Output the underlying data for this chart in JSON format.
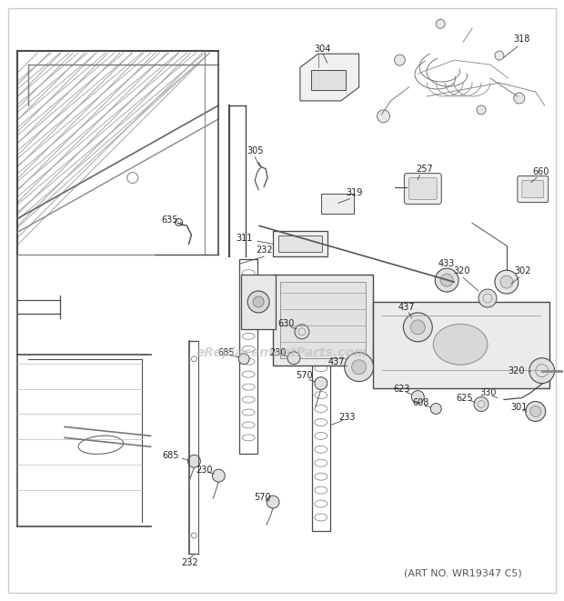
{
  "bg_color": "#ffffff",
  "watermark": "eReplacementParts.com",
  "art_no": "(ART NO. WR19347 C5)",
  "line_color": "#4a4a4a",
  "light_line": "#888888",
  "text_color": "#222222",
  "label_fontsize": 7.0,
  "watermark_color": "#bbbbbb",
  "watermark_fontsize": 10,
  "art_fontsize": 8,
  "fig_w": 6.2,
  "fig_h": 6.61,
  "dpi": 100
}
